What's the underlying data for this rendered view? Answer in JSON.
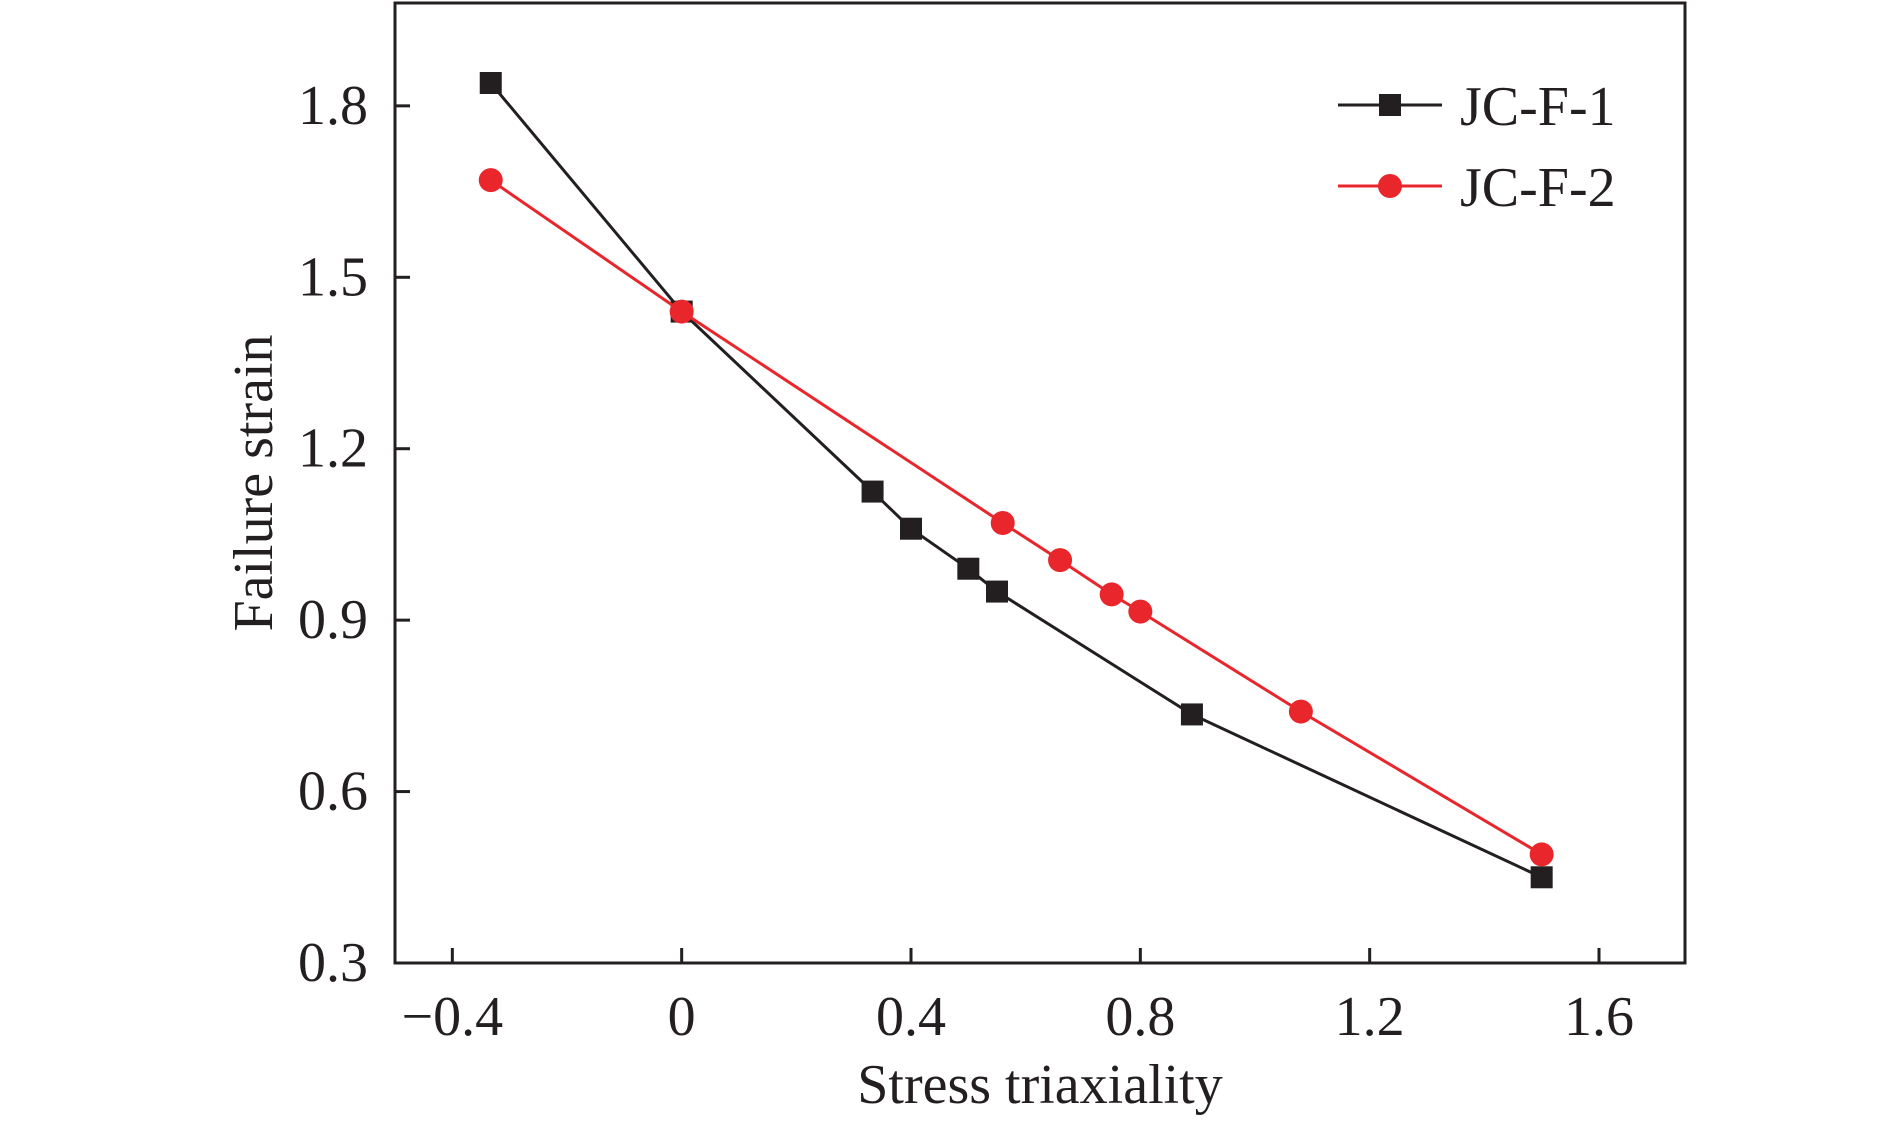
{
  "chart_data": {
    "type": "line",
    "title": "",
    "xlabel": "Stress triaxiality",
    "ylabel": "Failure strain",
    "xlim": [
      -0.5,
      1.75
    ],
    "ylim": [
      0.3,
      1.98
    ],
    "xticks": [
      -0.4,
      0,
      0.4,
      0.8,
      1.2,
      1.6
    ],
    "xtick_labels": [
      "−0.4",
      "0",
      "0.4",
      "0.8",
      "1.2",
      "1.6"
    ],
    "yticks": [
      0.3,
      0.6,
      0.9,
      1.2,
      1.5,
      1.8
    ],
    "ytick_labels": [
      "0.3",
      "0.6",
      "0.9",
      "1.2",
      "1.5",
      "1.8"
    ],
    "grid": false,
    "legend_position": "top-right",
    "series": [
      {
        "name": "JC-F-1",
        "color": "#231f20",
        "marker": "square",
        "x": [
          -0.333,
          0,
          0.333,
          0.4,
          0.5,
          0.55,
          0.89,
          1.5
        ],
        "y": [
          1.84,
          1.44,
          1.125,
          1.06,
          0.99,
          0.95,
          0.735,
          0.45
        ]
      },
      {
        "name": "JC-F-2",
        "color": "#e8262b",
        "marker": "circle",
        "x": [
          -0.333,
          0,
          0.56,
          0.66,
          0.75,
          0.8,
          1.08,
          1.5
        ],
        "y": [
          1.67,
          1.44,
          1.07,
          1.005,
          0.945,
          0.915,
          0.74,
          0.49
        ]
      }
    ]
  }
}
